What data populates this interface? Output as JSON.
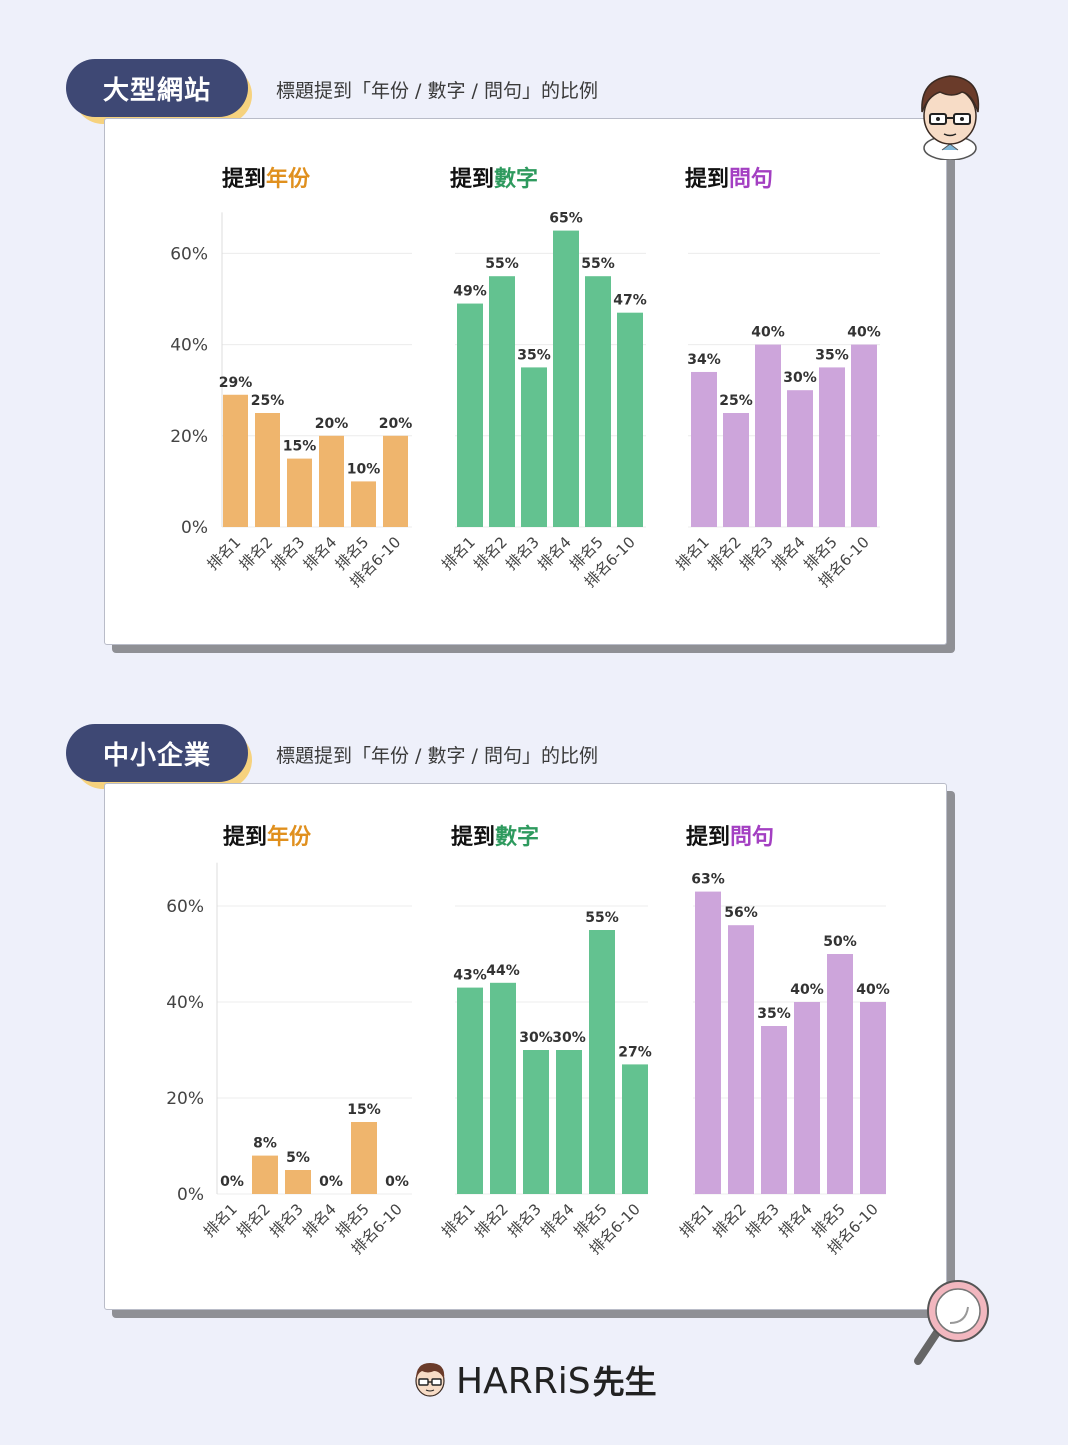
{
  "sections": [
    {
      "badge": "大型網站",
      "subtitle": "標題提到「年份 / 數字 / 問句」的比例",
      "charts": [
        {
          "title_prefix": "提到",
          "title_highlight": "年份",
          "color": "#efb56d",
          "highlight_color": "#e0901e"
        },
        {
          "title_prefix": "提到",
          "title_highlight": "數字",
          "color": "#63c290",
          "highlight_color": "#2e9a5e"
        },
        {
          "title_prefix": "提到",
          "title_highlight": "問句",
          "color": "#cda5db",
          "highlight_color": "#a33fc2"
        }
      ]
    },
    {
      "badge": "中小企業",
      "subtitle": "標題提到「年份 / 數字 / 問句」的比例",
      "charts": [
        {
          "title_prefix": "提到",
          "title_highlight": "年份",
          "color": "#efb56d",
          "highlight_color": "#e0901e"
        },
        {
          "title_prefix": "提到",
          "title_highlight": "數字",
          "color": "#63c290",
          "highlight_color": "#2e9a5e"
        },
        {
          "title_prefix": "提到",
          "title_highlight": "問句",
          "color": "#cda5db",
          "highlight_color": "#a33fc2"
        }
      ]
    }
  ],
  "chart_data": [
    {
      "type": "bar",
      "title": "提到年份",
      "categories": [
        "排名1",
        "排名2",
        "排名3",
        "排名4",
        "排名5",
        "排名6-10"
      ],
      "values": [
        29,
        25,
        15,
        20,
        10,
        20
      ],
      "data_labels": [
        "29%",
        "25%",
        "15%",
        "20%",
        "10%",
        "20%"
      ],
      "yticks": [
        "0%",
        "20%",
        "40%",
        "60%"
      ],
      "ylim": [
        0,
        70
      ],
      "grid": true
    },
    {
      "type": "bar",
      "title": "提到數字",
      "categories": [
        "排名1",
        "排名2",
        "排名3",
        "排名4",
        "排名5",
        "排名6-10"
      ],
      "values": [
        49,
        55,
        35,
        65,
        55,
        47
      ],
      "data_labels": [
        "49%",
        "55%",
        "35%",
        "65%",
        "55%",
        "47%"
      ],
      "ylim": [
        0,
        70
      ],
      "grid": true
    },
    {
      "type": "bar",
      "title": "提到問句",
      "categories": [
        "排名1",
        "排名2",
        "排名3",
        "排名4",
        "排名5",
        "排名6-10"
      ],
      "values": [
        34,
        25,
        40,
        30,
        35,
        40
      ],
      "data_labels": [
        "34%",
        "25%",
        "40%",
        "30%",
        "35%",
        "40%"
      ],
      "ylim": [
        0,
        70
      ],
      "grid": true
    },
    {
      "type": "bar",
      "title": "提到年份",
      "categories": [
        "排名1",
        "排名2",
        "排名3",
        "排名4",
        "排名5",
        "排名6-10"
      ],
      "values": [
        0,
        8,
        5,
        0,
        15,
        0
      ],
      "data_labels": [
        "0%",
        "8%",
        "5%",
        "0%",
        "15%",
        "0%"
      ],
      "yticks": [
        "0%",
        "20%",
        "40%",
        "60%"
      ],
      "ylim": [
        0,
        70
      ],
      "grid": true
    },
    {
      "type": "bar",
      "title": "提到數字",
      "categories": [
        "排名1",
        "排名2",
        "排名3",
        "排名4",
        "排名5",
        "排名6-10"
      ],
      "values": [
        43,
        44,
        30,
        30,
        55,
        27
      ],
      "data_labels": [
        "43%",
        "44%",
        "30%",
        "30%",
        "55%",
        "27%"
      ],
      "ylim": [
        0,
        70
      ],
      "grid": true
    },
    {
      "type": "bar",
      "title": "提到問句",
      "categories": [
        "排名1",
        "排名2",
        "排名3",
        "排名4",
        "排名5",
        "排名6-10"
      ],
      "values": [
        63,
        56,
        35,
        40,
        50,
        40
      ],
      "data_labels": [
        "63%",
        "56%",
        "35%",
        "40%",
        "50%",
        "40%"
      ],
      "ylim": [
        0,
        70
      ],
      "grid": true
    }
  ],
  "footer": {
    "brand": "HARRiS",
    "brand_suffix": "先生"
  },
  "icons": {
    "mascot": "mascot-face-icon",
    "magnifier": "magnifier-icon"
  }
}
